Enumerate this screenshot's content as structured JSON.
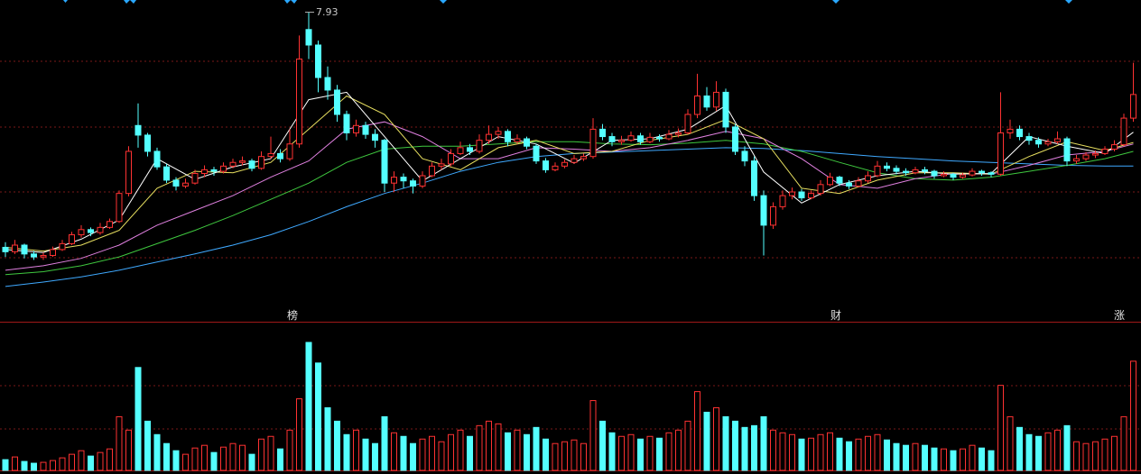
{
  "chart_data": {
    "type": "candlestick",
    "up_color": "#ff3232",
    "down_color": "#54ffff",
    "ylim": [
      3.95,
      8.1
    ],
    "ohlc": [
      [
        4.75,
        4.82,
        4.62,
        4.69
      ],
      [
        4.69,
        4.85,
        4.66,
        4.78
      ],
      [
        4.78,
        4.8,
        4.6,
        4.66
      ],
      [
        4.66,
        4.7,
        4.58,
        4.62
      ],
      [
        4.62,
        4.68,
        4.58,
        4.64
      ],
      [
        4.64,
        4.76,
        4.62,
        4.72
      ],
      [
        4.72,
        4.85,
        4.7,
        4.8
      ],
      [
        4.8,
        4.96,
        4.78,
        4.92
      ],
      [
        4.92,
        5.05,
        4.88,
        4.99
      ],
      [
        4.99,
        5.02,
        4.9,
        4.95
      ],
      [
        4.95,
        5.08,
        4.92,
        5.02
      ],
      [
        5.02,
        5.14,
        5.0,
        5.1
      ],
      [
        5.1,
        5.52,
        5.08,
        5.48
      ],
      [
        5.48,
        6.12,
        5.44,
        6.05
      ],
      [
        6.4,
        6.7,
        6.1,
        6.27
      ],
      [
        6.27,
        6.3,
        5.98,
        6.05
      ],
      [
        6.05,
        6.1,
        5.8,
        5.84
      ],
      [
        5.84,
        5.88,
        5.62,
        5.66
      ],
      [
        5.66,
        5.7,
        5.52,
        5.58
      ],
      [
        5.58,
        5.68,
        5.55,
        5.62
      ],
      [
        5.62,
        5.8,
        5.6,
        5.75
      ],
      [
        5.75,
        5.86,
        5.7,
        5.8
      ],
      [
        5.8,
        5.84,
        5.72,
        5.78
      ],
      [
        5.78,
        5.9,
        5.75,
        5.85
      ],
      [
        5.85,
        5.95,
        5.82,
        5.9
      ],
      [
        5.9,
        5.98,
        5.86,
        5.92
      ],
      [
        5.92,
        5.95,
        5.78,
        5.82
      ],
      [
        5.82,
        6.05,
        5.8,
        5.98
      ],
      [
        5.98,
        6.25,
        5.95,
        6.02
      ],
      [
        6.02,
        6.08,
        5.9,
        5.95
      ],
      [
        5.95,
        6.35,
        5.92,
        6.15
      ],
      [
        6.15,
        7.62,
        6.1,
        7.3
      ],
      [
        7.7,
        7.93,
        7.3,
        7.49
      ],
      [
        7.49,
        7.55,
        6.85,
        7.05
      ],
      [
        7.05,
        7.2,
        6.75,
        6.88
      ],
      [
        6.88,
        6.95,
        6.45,
        6.55
      ],
      [
        6.55,
        6.6,
        6.2,
        6.3
      ],
      [
        6.3,
        6.48,
        6.25,
        6.4
      ],
      [
        6.4,
        6.45,
        6.22,
        6.28
      ],
      [
        6.28,
        6.35,
        6.1,
        6.2
      ],
      [
        6.2,
        6.22,
        5.5,
        5.62
      ],
      [
        5.62,
        5.78,
        5.5,
        5.7
      ],
      [
        5.7,
        5.75,
        5.55,
        5.65
      ],
      [
        5.65,
        5.68,
        5.48,
        5.58
      ],
      [
        5.58,
        5.78,
        5.55,
        5.72
      ],
      [
        5.72,
        5.9,
        5.7,
        5.85
      ],
      [
        5.85,
        5.95,
        5.8,
        5.88
      ],
      [
        5.88,
        6.08,
        5.85,
        6.02
      ],
      [
        6.02,
        6.18,
        6.0,
        6.1
      ],
      [
        6.1,
        6.15,
        6.0,
        6.05
      ],
      [
        6.05,
        6.28,
        6.02,
        6.2
      ],
      [
        6.2,
        6.4,
        6.15,
        6.28
      ],
      [
        6.28,
        6.38,
        6.22,
        6.32
      ],
      [
        6.32,
        6.35,
        6.12,
        6.18
      ],
      [
        6.18,
        6.28,
        6.15,
        6.22
      ],
      [
        6.22,
        6.25,
        6.08,
        6.12
      ],
      [
        6.12,
        6.15,
        5.88,
        5.92
      ],
      [
        5.92,
        5.96,
        5.76,
        5.8
      ],
      [
        5.8,
        5.9,
        5.78,
        5.85
      ],
      [
        5.85,
        5.94,
        5.82,
        5.9
      ],
      [
        5.9,
        6.0,
        5.88,
        5.95
      ],
      [
        5.95,
        6.02,
        5.92,
        5.98
      ],
      [
        5.98,
        6.5,
        5.95,
        6.35
      ],
      [
        6.35,
        6.42,
        6.2,
        6.25
      ],
      [
        6.25,
        6.3,
        6.12,
        6.18
      ],
      [
        6.18,
        6.26,
        6.14,
        6.2
      ],
      [
        6.2,
        6.32,
        6.18,
        6.26
      ],
      [
        6.26,
        6.3,
        6.14,
        6.18
      ],
      [
        6.18,
        6.3,
        6.16,
        6.24
      ],
      [
        6.24,
        6.28,
        6.18,
        6.22
      ],
      [
        6.22,
        6.34,
        6.2,
        6.28
      ],
      [
        6.28,
        6.36,
        6.24,
        6.3
      ],
      [
        6.3,
        6.62,
        6.28,
        6.55
      ],
      [
        6.55,
        7.1,
        6.5,
        6.8
      ],
      [
        6.8,
        6.92,
        6.6,
        6.65
      ],
      [
        6.65,
        7.0,
        6.6,
        6.85
      ],
      [
        6.85,
        6.9,
        6.3,
        6.38
      ],
      [
        6.38,
        6.42,
        6.0,
        6.05
      ],
      [
        6.05,
        6.12,
        5.85,
        5.92
      ],
      [
        5.92,
        5.98,
        5.38,
        5.45
      ],
      [
        5.45,
        5.52,
        4.64,
        5.05
      ],
      [
        5.05,
        5.36,
        5.0,
        5.3
      ],
      [
        5.3,
        5.52,
        5.26,
        5.45
      ],
      [
        5.45,
        5.56,
        5.4,
        5.5
      ],
      [
        5.5,
        5.54,
        5.38,
        5.42
      ],
      [
        5.42,
        5.52,
        5.4,
        5.48
      ],
      [
        5.48,
        5.66,
        5.45,
        5.6
      ],
      [
        5.6,
        5.76,
        5.58,
        5.7
      ],
      [
        5.7,
        5.72,
        5.58,
        5.62
      ],
      [
        5.62,
        5.66,
        5.54,
        5.58
      ],
      [
        5.58,
        5.7,
        5.56,
        5.65
      ],
      [
        5.65,
        5.78,
        5.62,
        5.72
      ],
      [
        5.72,
        5.92,
        5.7,
        5.85
      ],
      [
        5.85,
        5.9,
        5.78,
        5.82
      ],
      [
        5.82,
        5.86,
        5.74,
        5.78
      ],
      [
        5.78,
        5.82,
        5.72,
        5.76
      ],
      [
        5.76,
        5.84,
        5.74,
        5.8
      ],
      [
        5.8,
        5.84,
        5.74,
        5.78
      ],
      [
        5.78,
        5.8,
        5.68,
        5.72
      ],
      [
        5.72,
        5.78,
        5.7,
        5.74
      ],
      [
        5.74,
        5.76,
        5.66,
        5.7
      ],
      [
        5.7,
        5.76,
        5.68,
        5.73
      ],
      [
        5.73,
        5.82,
        5.71,
        5.78
      ],
      [
        5.78,
        5.8,
        5.72,
        5.76
      ],
      [
        5.76,
        5.78,
        5.7,
        5.74
      ],
      [
        5.74,
        6.85,
        5.72,
        6.3
      ],
      [
        6.3,
        6.48,
        6.22,
        6.35
      ],
      [
        6.35,
        6.4,
        6.2,
        6.25
      ],
      [
        6.25,
        6.3,
        6.14,
        6.2
      ],
      [
        6.2,
        6.24,
        6.1,
        6.15
      ],
      [
        6.15,
        6.22,
        6.12,
        6.18
      ],
      [
        6.18,
        6.32,
        6.15,
        6.22
      ],
      [
        6.22,
        6.25,
        5.85,
        5.92
      ],
      [
        5.92,
        6.0,
        5.88,
        5.95
      ],
      [
        5.95,
        6.04,
        5.92,
        6.0
      ],
      [
        6.0,
        6.06,
        5.96,
        6.02
      ],
      [
        6.02,
        6.12,
        6.0,
        6.08
      ],
      [
        6.08,
        6.2,
        6.05,
        6.14
      ],
      [
        6.14,
        6.56,
        6.12,
        6.5
      ],
      [
        6.5,
        7.25,
        6.45,
        6.82
      ]
    ],
    "volume_lim": [
      0,
      145
    ],
    "volume": [
      12,
      15,
      10,
      8,
      9,
      11,
      14,
      18,
      22,
      16,
      20,
      24,
      60,
      45,
      115,
      55,
      40,
      30,
      22,
      18,
      25,
      28,
      20,
      26,
      30,
      28,
      18,
      35,
      38,
      24,
      45,
      80,
      143,
      120,
      70,
      55,
      40,
      45,
      35,
      30,
      60,
      42,
      38,
      30,
      35,
      38,
      32,
      40,
      45,
      38,
      50,
      55,
      52,
      42,
      45,
      40,
      48,
      35,
      30,
      32,
      34,
      30,
      78,
      55,
      42,
      38,
      40,
      35,
      38,
      36,
      42,
      45,
      55,
      88,
      65,
      70,
      60,
      55,
      48,
      50,
      60,
      45,
      42,
      40,
      35,
      36,
      40,
      42,
      36,
      32,
      35,
      38,
      40,
      34,
      30,
      28,
      30,
      28,
      25,
      24,
      22,
      24,
      28,
      25,
      22,
      95,
      60,
      48,
      40,
      38,
      42,
      45,
      50,
      32,
      30,
      32,
      35,
      38,
      60,
      122
    ],
    "ma_x": [
      0,
      4,
      8,
      12,
      16,
      20,
      24,
      28,
      32,
      36,
      40,
      44,
      48,
      52,
      56,
      60,
      64,
      68,
      72,
      76,
      80,
      84,
      88,
      92,
      96,
      100,
      104,
      108,
      112,
      116,
      119
    ],
    "moving_averages": [
      {
        "color": "#3fa9ff",
        "values": [
          4.22,
          4.28,
          4.35,
          4.44,
          4.55,
          4.66,
          4.78,
          4.92,
          5.1,
          5.3,
          5.48,
          5.62,
          5.78,
          5.9,
          5.98,
          6.02,
          6.04,
          6.06,
          6.08,
          6.1,
          6.09,
          6.06,
          6.02,
          5.98,
          5.95,
          5.92,
          5.9,
          5.88,
          5.86,
          5.85,
          5.85
        ]
      },
      {
        "color": "#3fc83f",
        "values": [
          4.38,
          4.42,
          4.5,
          4.62,
          4.8,
          4.98,
          5.18,
          5.4,
          5.62,
          5.9,
          6.08,
          6.12,
          6.12,
          6.15,
          6.18,
          6.18,
          6.15,
          6.14,
          6.16,
          6.2,
          6.15,
          6.05,
          5.9,
          5.76,
          5.68,
          5.66,
          5.7,
          5.78,
          5.86,
          5.95,
          6.05
        ]
      },
      {
        "color": "#e080e0",
        "values": [
          4.44,
          4.5,
          4.6,
          4.78,
          5.05,
          5.25,
          5.45,
          5.7,
          5.92,
          6.35,
          6.45,
          6.25,
          5.95,
          5.95,
          6.1,
          6.08,
          6.05,
          6.1,
          6.2,
          6.32,
          6.22,
          5.95,
          5.6,
          5.55,
          5.68,
          5.75,
          5.74,
          5.86,
          6.0,
          6.05,
          6.15
        ]
      },
      {
        "color": "#e8e060",
        "values": [
          4.75,
          4.7,
          4.78,
          4.98,
          5.55,
          5.78,
          5.76,
          5.9,
          6.35,
          6.8,
          6.55,
          5.95,
          5.8,
          6.1,
          6.2,
          6.02,
          6.05,
          6.2,
          6.28,
          6.48,
          6.22,
          5.55,
          5.48,
          5.66,
          5.76,
          5.76,
          5.74,
          5.98,
          6.18,
          6.06,
          6.17
        ]
      },
      {
        "color": "#ffffff",
        "values": [
          4.72,
          4.68,
          4.86,
          5.12,
          5.95,
          5.67,
          5.84,
          5.95,
          6.75,
          6.85,
          6.25,
          5.65,
          5.95,
          6.25,
          6.15,
          5.89,
          6.2,
          6.22,
          6.35,
          6.67,
          5.77,
          5.35,
          5.6,
          5.72,
          5.78,
          5.74,
          5.75,
          6.25,
          6.12,
          6.02,
          6.31
        ]
      }
    ],
    "high_label": "7.93",
    "markers": [
      "榜",
      "财",
      "涨"
    ]
  }
}
